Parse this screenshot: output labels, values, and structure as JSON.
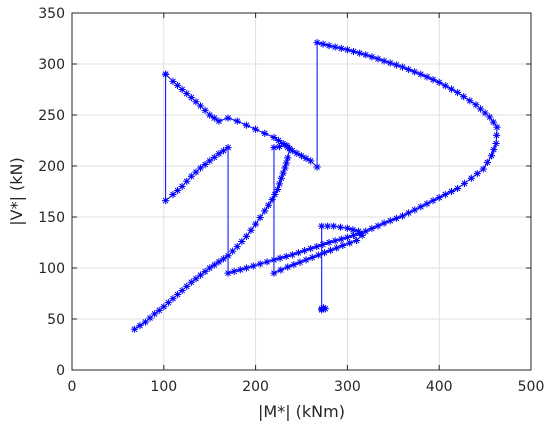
{
  "chart_data": {
    "type": "line",
    "title": "",
    "xlabel": "|M*| (kNm)",
    "ylabel": "|V*| (kN)",
    "xlim": [
      0,
      500
    ],
    "ylim": [
      0,
      350
    ],
    "xticks": [
      0,
      100,
      200,
      300,
      400,
      500
    ],
    "yticks": [
      0,
      50,
      100,
      150,
      200,
      250,
      300,
      350
    ],
    "grid": true,
    "legend": "none",
    "series": [
      {
        "color": "#0000ff",
        "marker": "asterisk",
        "points": [
          [
            102,
            290
          ],
          [
            110,
            283
          ],
          [
            120,
            275
          ],
          [
            130,
            267
          ],
          [
            140,
            259
          ],
          [
            150,
            250
          ],
          [
            160,
            244
          ],
          [
            170,
            247
          ],
          [
            180,
            244
          ],
          [
            190,
            240
          ],
          [
            200,
            236
          ],
          [
            210,
            232
          ],
          [
            220,
            228
          ],
          [
            230,
            222
          ],
          [
            240,
            215
          ],
          [
            250,
            210
          ],
          [
            260,
            205
          ],
          [
            267,
            199
          ],
          [
            267,
            321
          ],
          [
            280,
            318
          ],
          [
            300,
            314
          ],
          [
            320,
            309
          ],
          [
            340,
            303
          ],
          [
            360,
            297
          ],
          [
            380,
            290
          ],
          [
            400,
            282
          ],
          [
            420,
            272
          ],
          [
            440,
            260
          ],
          [
            455,
            248
          ],
          [
            463,
            238
          ],
          [
            462,
            222
          ],
          [
            457,
            210
          ],
          [
            448,
            197
          ],
          [
            435,
            188
          ],
          [
            420,
            178
          ],
          [
            400,
            169
          ],
          [
            380,
            160
          ],
          [
            360,
            151
          ],
          [
            340,
            144
          ],
          [
            320,
            136
          ],
          [
            300,
            130
          ],
          [
            280,
            125
          ],
          [
            260,
            119
          ],
          [
            240,
            113
          ],
          [
            220,
            108
          ],
          [
            205,
            104
          ],
          [
            190,
            100
          ],
          [
            170,
            95
          ],
          [
            170,
            218
          ],
          [
            160,
            212
          ],
          [
            150,
            205
          ],
          [
            140,
            198
          ],
          [
            130,
            190
          ],
          [
            120,
            180
          ],
          [
            110,
            172
          ],
          [
            102,
            166
          ],
          [
            102,
            290
          ]
        ]
      },
      {
        "color": "#0000ff",
        "marker": "asterisk",
        "points": [
          [
            68,
            40
          ],
          [
            80,
            47
          ],
          [
            90,
            55
          ],
          [
            100,
            62
          ],
          [
            110,
            70
          ],
          [
            120,
            78
          ],
          [
            130,
            86
          ],
          [
            140,
            93
          ],
          [
            150,
            100
          ],
          [
            160,
            106
          ],
          [
            170,
            112
          ],
          [
            180,
            121
          ],
          [
            190,
            131
          ],
          [
            200,
            143
          ],
          [
            210,
            156
          ],
          [
            218,
            167
          ],
          [
            224,
            177
          ],
          [
            228,
            188
          ],
          [
            232,
            198
          ],
          [
            235,
            208
          ],
          [
            237,
            217
          ],
          [
            234,
            220
          ],
          [
            226,
            219
          ],
          [
            220,
            218
          ],
          [
            220,
            95
          ],
          [
            235,
            101
          ],
          [
            255,
            108
          ],
          [
            275,
            115
          ],
          [
            295,
            122
          ],
          [
            310,
            127
          ],
          [
            316,
            132
          ],
          [
            312,
            136
          ],
          [
            300,
            139
          ],
          [
            285,
            141
          ],
          [
            272,
            141
          ],
          [
            272,
            60
          ],
          [
            274,
            61
          ],
          [
            276,
            60
          ],
          [
            272,
            59
          ]
        ]
      }
    ]
  }
}
